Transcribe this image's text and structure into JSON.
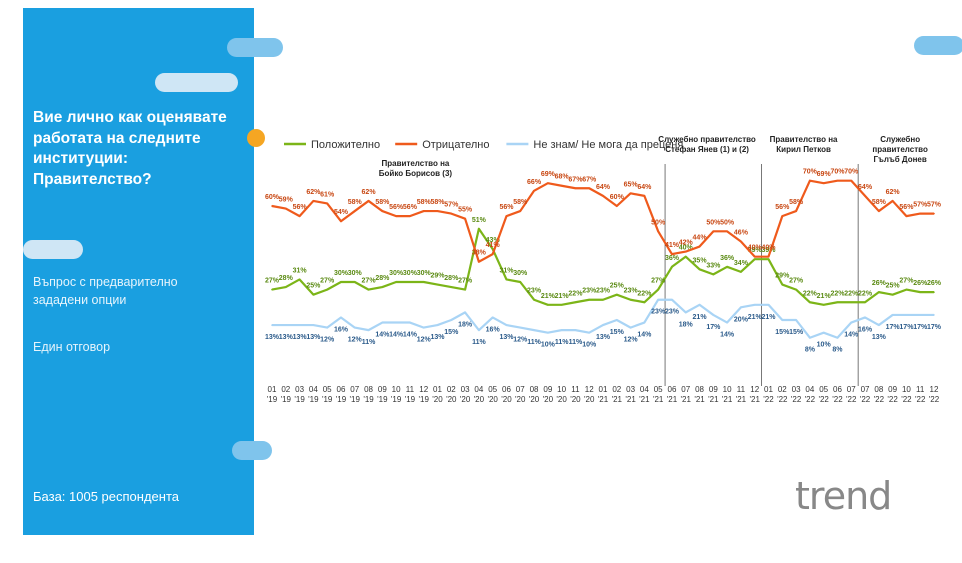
{
  "panel": {
    "question": "Вие лично как оценявате работата на следните институции: Правителство?",
    "method": "Въпрос с предварително зададени опции",
    "answer": "Един отговор",
    "base": "База:  1005 респондента"
  },
  "logo": {
    "text": "trend",
    "accent_color": "#1a9fe0",
    "dot_color": "#f5a623"
  },
  "colors": {
    "panel": "#1a9fe0",
    "positive": "#7cb518",
    "negative": "#ef5a1c",
    "dontknow": "#a9d4f5"
  },
  "chart_data": {
    "type": "line",
    "categories": [
      "01 '19",
      "02 '19",
      "03 '19",
      "04 '19",
      "05 '19",
      "06 '19",
      "07 '19",
      "08 '19",
      "09 '19",
      "10 '19",
      "11 '19",
      "12 '19",
      "01 '20",
      "02 '20",
      "03 '20",
      "04 '20",
      "05 '20",
      "06 '20",
      "07 '20",
      "08 '20",
      "09 '20",
      "10 '20",
      "11 '20",
      "12 '20",
      "01 '21",
      "02 '21",
      "03 '21",
      "04 '21",
      "05 '21",
      "06 '21",
      "07 '21",
      "08 '21",
      "09 '21",
      "10 '21",
      "11 '21",
      "12 '21",
      "01 '22",
      "02 '22",
      "03 '22",
      "04 '22",
      "05 '22",
      "06 '22",
      "07 '22",
      "07 '22",
      "08 '22",
      "09 '22",
      "10 '22",
      "11 '22",
      "12 '22"
    ],
    "tick_labels": [
      [
        "01",
        "'19"
      ],
      [
        "02",
        "'19"
      ],
      [
        "03",
        "'19"
      ],
      [
        "04",
        "'19"
      ],
      [
        "05",
        "'19"
      ],
      [
        "06",
        "'19"
      ],
      [
        "07",
        "'19"
      ],
      [
        "08",
        "'19"
      ],
      [
        "09",
        "'19"
      ],
      [
        "10",
        "'19"
      ],
      [
        "11",
        "'19"
      ],
      [
        "12",
        "'19"
      ],
      [
        "01",
        "'20"
      ],
      [
        "02",
        "'20"
      ],
      [
        "03",
        "'20"
      ],
      [
        "04",
        "'20"
      ],
      [
        "05",
        "'20"
      ],
      [
        "06",
        "'20"
      ],
      [
        "07",
        "'20"
      ],
      [
        "08",
        "'20"
      ],
      [
        "09",
        "'20"
      ],
      [
        "10",
        "'20"
      ],
      [
        "11",
        "'20"
      ],
      [
        "12",
        "'20"
      ],
      [
        "01",
        "'21"
      ],
      [
        "02",
        "'21"
      ],
      [
        "03",
        "'21"
      ],
      [
        "04",
        "'21"
      ],
      [
        "05",
        "'21"
      ],
      [
        "06",
        "'21"
      ],
      [
        "07",
        "'21"
      ],
      [
        "08",
        "'21"
      ],
      [
        "09",
        "'21"
      ],
      [
        "10",
        "'21"
      ],
      [
        "11",
        "'21"
      ],
      [
        "12",
        "'21"
      ],
      [
        "01",
        "'22"
      ],
      [
        "02",
        "'22"
      ],
      [
        "03",
        "'22"
      ],
      [
        "04",
        "'22"
      ],
      [
        "05",
        "'22"
      ],
      [
        "06",
        "'22"
      ],
      [
        "07",
        "'22"
      ],
      [
        "07",
        "'22"
      ],
      [
        "08",
        "'22"
      ],
      [
        "09",
        "'22"
      ],
      [
        "10",
        "'22"
      ],
      [
        "11",
        "'22"
      ],
      [
        "12",
        "'22"
      ]
    ],
    "series": [
      {
        "name": "Положително",
        "color": "#7cb518",
        "values": [
          27,
          28,
          31,
          25,
          27,
          30,
          30,
          27,
          28,
          30,
          30,
          30,
          29,
          28,
          27,
          51,
          43,
          31,
          30,
          23,
          21,
          21,
          22,
          23,
          23,
          25,
          23,
          22,
          27,
          36,
          40,
          35,
          33,
          36,
          34,
          39,
          39,
          29,
          27,
          22,
          21,
          22,
          22,
          22,
          26,
          25,
          27,
          26,
          26
        ]
      },
      {
        "name": "Отрицателно",
        "color": "#ef5a1c",
        "values": [
          60,
          59,
          56,
          62,
          61,
          54,
          58,
          62,
          58,
          56,
          56,
          58,
          58,
          57,
          55,
          38,
          41,
          56,
          58,
          66,
          69,
          68,
          67,
          67,
          64,
          60,
          65,
          64,
          50,
          41,
          42,
          44,
          50,
          50,
          46,
          40,
          40,
          56,
          58,
          70,
          69,
          70,
          70,
          64,
          58,
          62,
          56,
          57,
          57
        ]
      },
      {
        "name": "Не знам/ Не мога да преценя",
        "color": "#a9d4f5",
        "values": [
          13,
          13,
          13,
          13,
          12,
          16,
          12,
          11,
          14,
          14,
          14,
          12,
          13,
          15,
          18,
          11,
          16,
          13,
          12,
          11,
          10,
          11,
          11,
          10,
          13,
          15,
          12,
          14,
          23,
          23,
          18,
          21,
          17,
          14,
          20,
          21,
          21,
          15,
          15,
          8,
          10,
          8,
          14,
          16,
          13,
          17,
          17,
          17,
          17
        ]
      }
    ],
    "data_labels": [
      {
        "series": 0,
        "values": [
          "27%",
          "28%",
          "31%",
          "25%",
          "27%",
          "30%",
          "30%",
          "27%",
          "28%",
          "30%",
          "30%",
          "30%",
          "29%",
          "28%",
          "27%",
          "51%",
          "43%",
          "31%",
          "30%",
          "23%",
          "21%",
          "21%",
          "22%",
          "23%",
          "23%",
          "25%",
          "23%",
          "22%",
          "27%",
          "36%",
          "40%",
          "35%",
          "33%",
          "36%",
          "34%",
          "39%",
          "39%",
          "29%",
          "27%",
          "22%",
          "21%",
          "22%",
          "22%",
          "22%",
          "26%",
          "25%",
          "27%",
          "26%",
          "26%"
        ]
      },
      {
        "series": 1,
        "values": [
          "60%",
          "59%",
          "56%",
          "62%",
          "61%",
          "54%",
          "58%",
          "62%",
          "58%",
          "56%",
          "56%",
          "58%",
          "58%",
          "57%",
          "55%",
          "38%",
          "41%",
          "56%",
          "58%",
          "66%",
          "69%",
          "68%",
          "67%",
          "67%",
          "64%",
          "60%",
          "65%",
          "64%",
          "50%",
          "41%",
          "42%",
          "44%",
          "50%",
          "50%",
          "46%",
          "40%",
          "40%",
          "56%",
          "58%",
          "70%",
          "69%",
          "70%",
          "70%",
          "64%",
          "58%",
          "62%",
          "56%",
          "57%",
          "57%"
        ]
      },
      {
        "series": 2,
        "values": [
          "13%",
          "13%",
          "13%",
          "13%",
          "12%",
          "16%",
          "12%",
          "11%",
          "14%",
          "14%",
          "14%",
          "12%",
          "13%",
          "15%",
          "18%",
          "11%",
          "16%",
          "13%",
          "12%",
          "11%",
          "10%",
          "11%",
          "11%",
          "10%",
          "13%",
          "15%",
          "12%",
          "14%",
          "23%",
          "23%",
          "18%",
          "21%",
          "17%",
          "14%",
          "20%",
          "21%",
          "21%",
          "15%",
          "15%",
          "8%",
          "10%",
          "8%",
          "14%",
          "16%",
          "13%",
          "17%",
          "17%",
          "17%",
          "17%"
        ]
      }
    ],
    "ylim": [
      0,
      75
    ],
    "grid": false,
    "legend": "top-left",
    "annotations": [
      {
        "text": [
          "Правителство на",
          "Бойко Борисов (3)"
        ],
        "x_index": 7.5,
        "divider": false
      },
      {
        "text": [
          "Служебно правителство",
          "Стефан Янев (1) и (2)"
        ],
        "x_index": 28.5,
        "divider": true
      },
      {
        "text": [
          "Правителство на",
          "Кирил Петков"
        ],
        "x_index": 35.5,
        "divider": true
      },
      {
        "text": [
          "Служебно",
          "правителство",
          "Гълъб Донев"
        ],
        "x_index": 42.5,
        "divider": true
      }
    ]
  }
}
